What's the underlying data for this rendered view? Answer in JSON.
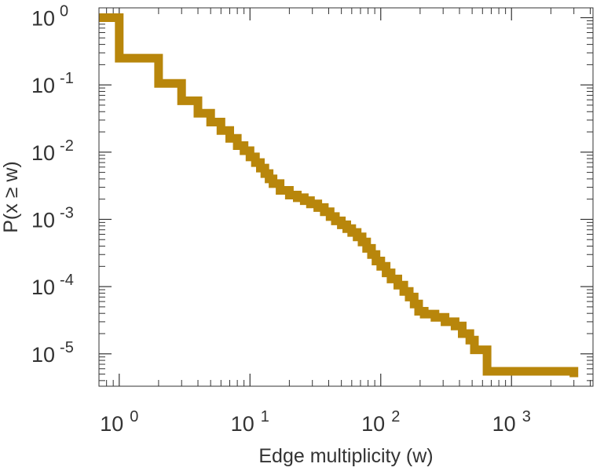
{
  "chart_data": {
    "type": "line",
    "step": true,
    "scale": {
      "x": "log",
      "y": "log"
    },
    "xlabel": "Edge multiplicity (w)",
    "ylabel": "P(x ≥ w)",
    "xlim": [
      0.7,
      4200
    ],
    "ylim": [
      3.3e-06,
      1.4
    ],
    "x_ticks": [
      {
        "value": 1,
        "base": "10",
        "exp": "0"
      },
      {
        "value": 10,
        "base": "10",
        "exp": "1"
      },
      {
        "value": 100,
        "base": "10",
        "exp": "2"
      },
      {
        "value": 1000,
        "base": "10",
        "exp": "3"
      }
    ],
    "y_ticks": [
      {
        "value": 1,
        "base": "10",
        "exp": "0"
      },
      {
        "value": 0.1,
        "base": "10",
        "exp": "-1"
      },
      {
        "value": 0.01,
        "base": "10",
        "exp": "-2"
      },
      {
        "value": 0.001,
        "base": "10",
        "exp": "-3"
      },
      {
        "value": 0.0001,
        "base": "10",
        "exp": "-4"
      },
      {
        "value": 1e-05,
        "base": "10",
        "exp": "-5"
      }
    ],
    "grid": false,
    "series": [
      {
        "color": "#B8860B",
        "points": [
          [
            0.7,
            1.0
          ],
          [
            1,
            1.0
          ],
          [
            1,
            0.25
          ],
          [
            2,
            0.25
          ],
          [
            2,
            0.105
          ],
          [
            3,
            0.105
          ],
          [
            3,
            0.058
          ],
          [
            4,
            0.058
          ],
          [
            4,
            0.038
          ],
          [
            5,
            0.038
          ],
          [
            5,
            0.028
          ],
          [
            6,
            0.028
          ],
          [
            6,
            0.021
          ],
          [
            7,
            0.021
          ],
          [
            7,
            0.016
          ],
          [
            8,
            0.016
          ],
          [
            8,
            0.0125
          ],
          [
            9,
            0.0125
          ],
          [
            9,
            0.0105
          ],
          [
            10,
            0.0105
          ],
          [
            10,
            0.0085
          ],
          [
            11,
            0.0085
          ],
          [
            11,
            0.007
          ],
          [
            12,
            0.007
          ],
          [
            12,
            0.0058
          ],
          [
            13,
            0.0058
          ],
          [
            13,
            0.0048
          ],
          [
            14,
            0.0048
          ],
          [
            14,
            0.004
          ],
          [
            15,
            0.004
          ],
          [
            15,
            0.0034
          ],
          [
            17,
            0.0034
          ],
          [
            17,
            0.0027
          ],
          [
            20,
            0.0027
          ],
          [
            20,
            0.0023
          ],
          [
            23,
            0.0023
          ],
          [
            23,
            0.0021
          ],
          [
            26,
            0.0021
          ],
          [
            26,
            0.0019
          ],
          [
            29,
            0.0019
          ],
          [
            29,
            0.0017
          ],
          [
            33,
            0.0017
          ],
          [
            33,
            0.0015
          ],
          [
            37,
            0.0015
          ],
          [
            37,
            0.0013
          ],
          [
            41,
            0.0013
          ],
          [
            41,
            0.0011
          ],
          [
            45,
            0.0011
          ],
          [
            45,
            0.00095
          ],
          [
            50,
            0.00095
          ],
          [
            50,
            0.00083
          ],
          [
            55,
            0.00083
          ],
          [
            55,
            0.00073
          ],
          [
            60,
            0.00073
          ],
          [
            60,
            0.00064
          ],
          [
            66,
            0.00064
          ],
          [
            66,
            0.00055
          ],
          [
            72,
            0.00055
          ],
          [
            72,
            0.00046
          ],
          [
            78,
            0.00046
          ],
          [
            78,
            0.00037
          ],
          [
            85,
            0.00037
          ],
          [
            85,
            0.0003
          ],
          [
            92,
            0.0003
          ],
          [
            92,
            0.00024
          ],
          [
            100,
            0.00024
          ],
          [
            100,
            0.0002
          ],
          [
            110,
            0.0002
          ],
          [
            110,
            0.00016
          ],
          [
            120,
            0.00016
          ],
          [
            120,
            0.00013
          ],
          [
            135,
            0.00013
          ],
          [
            135,
            0.000105
          ],
          [
            150,
            0.000105
          ],
          [
            150,
            8.5e-05
          ],
          [
            165,
            8.5e-05
          ],
          [
            165,
            7e-05
          ],
          [
            180,
            7e-05
          ],
          [
            180,
            5.5e-05
          ],
          [
            195,
            5.5e-05
          ],
          [
            195,
            4.3e-05
          ],
          [
            215,
            4.3e-05
          ],
          [
            215,
            3.9e-05
          ],
          [
            260,
            3.9e-05
          ],
          [
            260,
            3.5e-05
          ],
          [
            310,
            3.5e-05
          ],
          [
            310,
            3e-05
          ],
          [
            370,
            3e-05
          ],
          [
            370,
            2.6e-05
          ],
          [
            420,
            2.6e-05
          ],
          [
            420,
            2e-05
          ],
          [
            480,
            2e-05
          ],
          [
            480,
            1.6e-05
          ],
          [
            520,
            1.6e-05
          ],
          [
            520,
            1.15e-05
          ],
          [
            650,
            1.15e-05
          ],
          [
            650,
            5.5e-06
          ],
          [
            3000,
            5.5e-06
          ],
          [
            3000,
            4.5e-06
          ]
        ]
      }
    ]
  }
}
